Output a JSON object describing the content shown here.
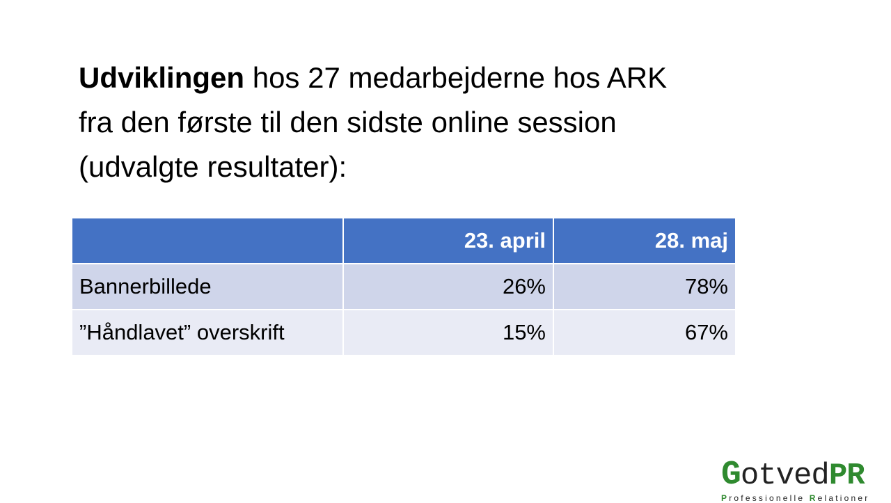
{
  "title": {
    "bold": "Udviklingen",
    "line1_rest": " hos 27 medarbejderne hos ARK",
    "line2": "fra den første til den sidste online session",
    "line3": "(udvalgte resultater):"
  },
  "table": {
    "headers": [
      "",
      "23. april",
      "28. maj"
    ],
    "rows": [
      {
        "label": "Bannerbillede",
        "values": [
          "26%",
          "78%"
        ]
      },
      {
        "label": "”Håndlavet” overskrift",
        "values": [
          "15%",
          "67%"
        ]
      }
    ],
    "colors": {
      "header": "#4472C4",
      "row_odd": "#CFD5EA",
      "row_even": "#E9EBF5"
    }
  },
  "logo": {
    "g": "G",
    "otved": "otved",
    "pr": "PR",
    "tagline_p": "P",
    "tagline_1": "rofessionelle ",
    "tagline_r": "R",
    "tagline_2": "elationer",
    "color": "#2f8a2f"
  }
}
